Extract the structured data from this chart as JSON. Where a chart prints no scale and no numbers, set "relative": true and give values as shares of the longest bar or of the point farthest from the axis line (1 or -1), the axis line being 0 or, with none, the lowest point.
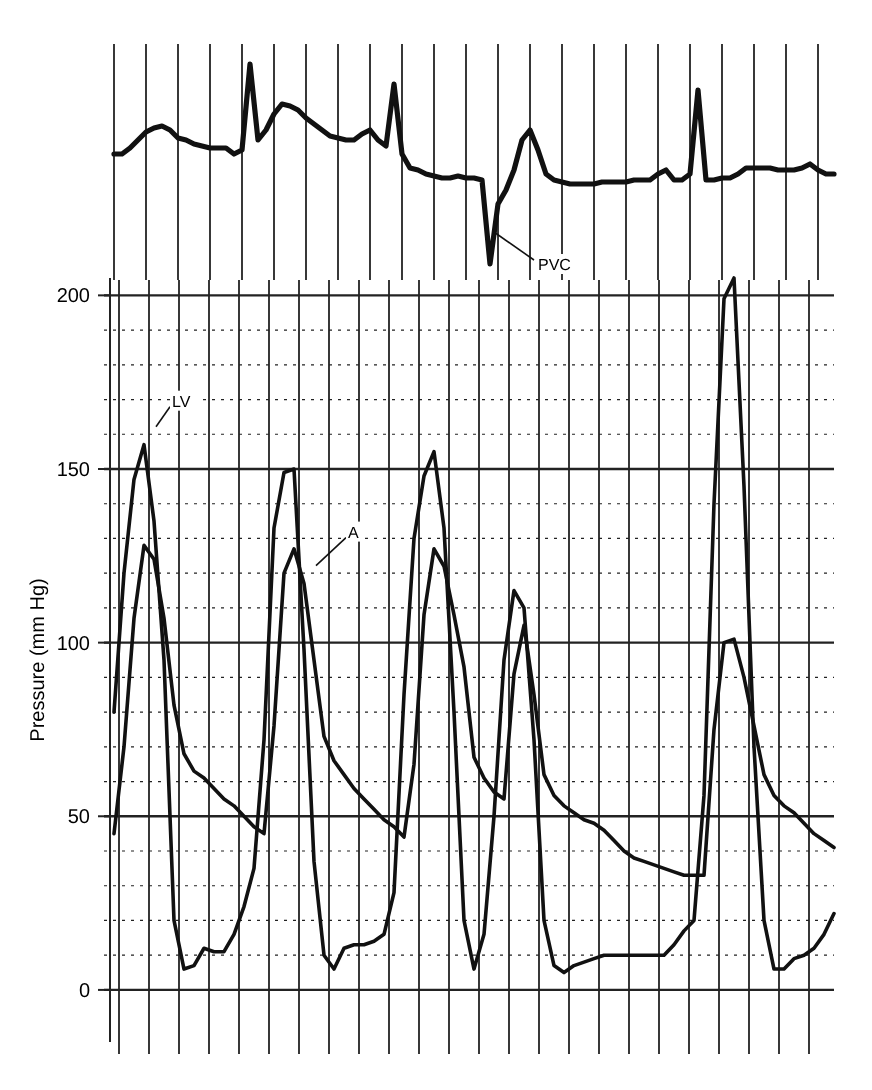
{
  "chart_data": [
    {
      "type": "line",
      "relative": true,
      "categories": [
        null,
        null,
        null,
        null,
        null,
        null,
        null,
        null,
        null,
        null,
        null,
        null,
        null,
        null,
        null,
        null,
        null,
        null,
        null,
        null,
        null,
        null,
        null,
        null,
        null,
        null,
        null,
        null,
        null,
        null,
        null,
        null,
        null,
        null,
        null,
        null,
        null,
        null,
        null,
        null,
        null,
        null,
        null,
        null,
        null,
        null,
        null,
        null,
        null,
        null,
        null,
        null,
        null,
        null,
        null,
        null,
        null,
        null,
        null,
        null,
        null,
        null,
        null,
        null,
        null,
        null,
        null,
        null,
        null,
        null,
        null,
        null,
        null,
        null,
        null,
        null,
        null,
        null,
        null,
        null,
        null,
        null,
        null,
        null,
        null,
        null,
        null,
        null,
        null,
        null,
        null
      ],
      "series": [
        {
          "color": "#111111",
          "values": [
            0.55,
            0.55,
            0.58,
            0.62,
            0.66,
            0.68,
            0.69,
            0.67,
            0.63,
            0.62,
            0.6,
            0.59,
            0.58,
            0.58,
            0.58,
            0.55,
            0.57,
            1.0,
            0.62,
            0.67,
            0.75,
            0.8,
            0.79,
            0.77,
            0.73,
            0.7,
            0.67,
            0.64,
            0.63,
            0.62,
            0.62,
            0.65,
            0.67,
            0.62,
            0.59,
            0.9,
            0.55,
            0.48,
            0.47,
            0.45,
            0.44,
            0.43,
            0.43,
            0.44,
            0.43,
            0.43,
            0.42,
            0,
            0.3,
            0.37,
            0.47,
            0.62,
            0.67,
            0.57,
            0.45,
            0.42,
            0.41,
            0.4,
            0.4,
            0.4,
            0.4,
            0.41,
            0.41,
            0.41,
            0.41,
            0.42,
            0.42,
            0.42,
            0.45,
            0.47,
            0.42,
            0.42,
            0.45,
            0.87,
            0.42,
            0.42,
            0.43,
            0.43,
            0.45,
            0.48,
            0.48,
            0.48,
            0.48,
            0.47,
            0.47,
            0.47,
            0.48,
            0.5,
            0.47,
            0.45,
            0.45
          ]
        }
      ],
      "annotations": [
        "PVC"
      ],
      "grid": "x"
    },
    {
      "type": "line",
      "ylabel": "Pressure (mm Hg)",
      "ylim": [
        -15,
        205
      ],
      "yticks": [
        0,
        {
          "value": 10,
          "label": null
        },
        {
          "value": 20,
          "label": null
        },
        {
          "value": 30,
          "label": null
        },
        {
          "value": 40,
          "label": null
        },
        50,
        {
          "value": 60,
          "label": null
        },
        {
          "value": 70,
          "label": null
        },
        {
          "value": 80,
          "label": null
        },
        {
          "value": 90,
          "label": null
        },
        100,
        {
          "value": 110,
          "label": null
        },
        {
          "value": 120,
          "label": null
        },
        {
          "value": 130,
          "label": null
        },
        {
          "value": 140,
          "label": null
        },
        150,
        {
          "value": 160,
          "label": null
        },
        {
          "value": 170,
          "label": null
        },
        {
          "value": 180,
          "label": null
        },
        {
          "value": 190,
          "label": null
        },
        200
      ],
      "grid": true,
      "categories": [
        null,
        null,
        null,
        null,
        null,
        null,
        null,
        null,
        null,
        null,
        null,
        null,
        null,
        null,
        null,
        null,
        null,
        null,
        null,
        null,
        null,
        null,
        null,
        null,
        null,
        null,
        null,
        null,
        null,
        null,
        null,
        null,
        null,
        null,
        null,
        null,
        null,
        null,
        null,
        null,
        null,
        null,
        null,
        null,
        null,
        null,
        null,
        null,
        null,
        null,
        null,
        null,
        null,
        null,
        null,
        null,
        null,
        null,
        null,
        null,
        null,
        null,
        null,
        null,
        null,
        null,
        null,
        null,
        null,
        null,
        null,
        null,
        null
      ],
      "series": [
        {
          "name": "LV",
          "color": "#111111",
          "values": [
            80,
            120,
            147,
            157,
            135,
            95,
            20,
            6,
            7,
            12,
            11,
            11,
            16,
            24,
            35,
            72,
            133,
            149,
            150,
            98,
            37,
            10,
            6,
            12,
            13,
            13,
            14,
            16,
            28,
            85,
            130,
            148,
            155,
            133,
            80,
            20,
            6,
            16,
            50,
            95,
            115,
            110,
            72,
            20,
            7,
            5,
            7,
            8,
            9,
            10,
            10,
            10,
            10,
            10,
            10,
            10,
            13,
            17,
            20,
            56,
            140,
            199,
            205,
            145,
            70,
            20,
            6,
            6,
            9,
            10,
            12,
            16,
            22
          ]
        },
        {
          "name": "A",
          "color": "#111111",
          "values": [
            45,
            70,
            107,
            128,
            124,
            107,
            82,
            68,
            63,
            61,
            58,
            55,
            53,
            50,
            47,
            45,
            76,
            120,
            127,
            117,
            95,
            73,
            66,
            62,
            58,
            55,
            52,
            49,
            47,
            44,
            65,
            108,
            127,
            122,
            108,
            93,
            67,
            61,
            57,
            55,
            91,
            105,
            85,
            62,
            56,
            53,
            51,
            49,
            48,
            46,
            43,
            40,
            38,
            37,
            36,
            35,
            34,
            33,
            33,
            33,
            75,
            100,
            101,
            90,
            76,
            62,
            56,
            53,
            51,
            48,
            45,
            43,
            41
          ]
        }
      ]
    }
  ]
}
